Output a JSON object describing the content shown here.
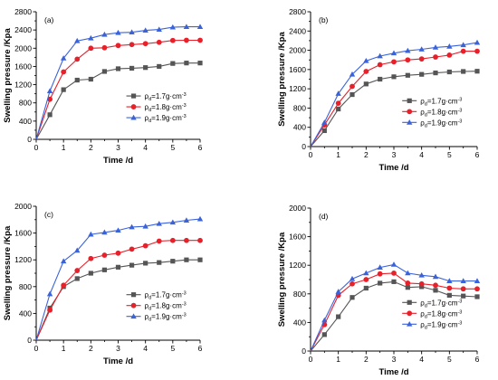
{
  "colors": {
    "series": [
      "#555555",
      "#e8202a",
      "#3b63d9"
    ],
    "axis": "#000000"
  },
  "chart_data": [
    {
      "type": "line",
      "panel_label": "(a)",
      "xlabel": "Time /d",
      "ylabel": "Swelling pressure /Kpa",
      "xlim": [
        0,
        6
      ],
      "ylim": [
        0,
        2800
      ],
      "xticks": [
        "0",
        "1",
        "2",
        "3",
        "4",
        "5",
        "6"
      ],
      "yticks": [
        "0",
        "400",
        "800",
        "1200",
        "1600",
        "2000",
        "2400",
        "2800"
      ],
      "grid": false,
      "legend_position": "lower-right",
      "x": [
        0,
        0.5,
        1,
        1.5,
        2,
        2.5,
        3,
        3.5,
        4,
        4.5,
        5,
        5.5,
        6
      ],
      "series": [
        {
          "legend": {
            "symbol": "ρ",
            "sub": "d",
            "text": "=1.7g·cm",
            "sup": "-3"
          },
          "marker": "square",
          "values": [
            0,
            540,
            1090,
            1300,
            1320,
            1490,
            1550,
            1560,
            1575,
            1600,
            1665,
            1675,
            1675
          ]
        },
        {
          "legend": {
            "symbol": "ρ",
            "sub": "d",
            "text": "=1.8g·cm",
            "sup": "-3"
          },
          "marker": "circle",
          "values": [
            0,
            880,
            1480,
            1760,
            2000,
            2010,
            2060,
            2080,
            2100,
            2130,
            2170,
            2175,
            2175
          ]
        },
        {
          "legend": {
            "symbol": "ρ",
            "sub": "d",
            "text": "=1.9g·cm",
            "sup": "-3"
          },
          "marker": "triangle",
          "values": [
            0,
            1060,
            1780,
            2160,
            2220,
            2300,
            2340,
            2350,
            2390,
            2410,
            2460,
            2470,
            2470
          ]
        }
      ]
    },
    {
      "type": "line",
      "panel_label": "(b)",
      "xlabel": "Time /d",
      "ylabel": "Swelling pressure /Kpa",
      "xlim": [
        0,
        6
      ],
      "ylim": [
        0,
        2800
      ],
      "xticks": [
        "0",
        "1",
        "2",
        "3",
        "4",
        "5",
        "6"
      ],
      "yticks": [
        "0",
        "400",
        "800",
        "1200",
        "1600",
        "2000",
        "2400",
        "2800"
      ],
      "grid": false,
      "legend_position": "lower-right",
      "x": [
        0,
        0.5,
        1,
        1.5,
        2,
        2.5,
        3,
        3.5,
        4,
        4.5,
        5,
        5.5,
        6
      ],
      "series": [
        {
          "legend": {
            "symbol": "ρ",
            "sub": "d",
            "text": "=1.7g·cm",
            "sup": "-3"
          },
          "marker": "square",
          "values": [
            0,
            330,
            780,
            1080,
            1300,
            1400,
            1450,
            1480,
            1500,
            1530,
            1550,
            1560,
            1565
          ]
        },
        {
          "legend": {
            "symbol": "ρ",
            "sub": "d",
            "text": "=1.8g·cm",
            "sup": "-3"
          },
          "marker": "circle",
          "values": [
            0,
            450,
            900,
            1250,
            1560,
            1700,
            1760,
            1800,
            1820,
            1860,
            1900,
            1980,
            1980
          ]
        },
        {
          "legend": {
            "symbol": "ρ",
            "sub": "d",
            "text": "=1.9g·cm",
            "sup": "-3"
          },
          "marker": "triangle",
          "values": [
            0,
            500,
            1100,
            1500,
            1780,
            1880,
            1940,
            1990,
            2020,
            2060,
            2080,
            2110,
            2160
          ]
        }
      ]
    },
    {
      "type": "line",
      "panel_label": "(c)",
      "xlabel": "Time /d",
      "ylabel": "Swelling pressure /Kpa",
      "xlim": [
        0,
        6
      ],
      "ylim": [
        0,
        2000
      ],
      "xticks": [
        "0",
        "1",
        "2",
        "3",
        "4",
        "5",
        "6"
      ],
      "yticks": [
        "0",
        "400",
        "800",
        "1200",
        "1600",
        "2000"
      ],
      "grid": false,
      "legend_position": "lower-right",
      "x": [
        0,
        0.5,
        1,
        1.5,
        2,
        2.5,
        3,
        3.5,
        4,
        4.5,
        5,
        5.5,
        6
      ],
      "series": [
        {
          "legend": {
            "symbol": "ρ",
            "sub": "d",
            "text": "=1.7g·cm",
            "sup": "-3"
          },
          "marker": "square",
          "values": [
            0,
            480,
            800,
            920,
            1000,
            1050,
            1090,
            1120,
            1150,
            1160,
            1180,
            1200,
            1200
          ]
        },
        {
          "legend": {
            "symbol": "ρ",
            "sub": "d",
            "text": "=1.8g·cm",
            "sup": "-3"
          },
          "marker": "circle",
          "values": [
            0,
            450,
            820,
            1040,
            1220,
            1270,
            1300,
            1360,
            1410,
            1480,
            1490,
            1490,
            1490
          ]
        },
        {
          "legend": {
            "symbol": "ρ",
            "sub": "d",
            "text": "=1.9g·cm",
            "sup": "-3"
          },
          "marker": "triangle",
          "values": [
            0,
            690,
            1180,
            1340,
            1580,
            1610,
            1640,
            1690,
            1700,
            1740,
            1760,
            1790,
            1810
          ]
        }
      ]
    },
    {
      "type": "line",
      "panel_label": "(d)",
      "xlabel": "Time /d",
      "ylabel": "Swelling pressure /Kpa",
      "xlim": [
        0,
        6
      ],
      "ylim": [
        0,
        2000
      ],
      "xticks": [
        "0",
        "1",
        "2",
        "3",
        "4",
        "5",
        "6"
      ],
      "yticks": [
        "0",
        "400",
        "800",
        "1200",
        "1600",
        "2000"
      ],
      "grid": false,
      "legend_position": "lower-right",
      "x": [
        0,
        0.5,
        1,
        1.5,
        2,
        2.5,
        3,
        3.5,
        4,
        4.5,
        5,
        5.5,
        6
      ],
      "series": [
        {
          "legend": {
            "symbol": "ρ",
            "sub": "d",
            "text": "=1.7g·cm",
            "sup": "-3"
          },
          "marker": "square",
          "values": [
            0,
            230,
            480,
            750,
            880,
            950,
            970,
            890,
            900,
            850,
            780,
            770,
            760
          ]
        },
        {
          "legend": {
            "symbol": "ρ",
            "sub": "d",
            "text": "=1.8g·cm",
            "sup": "-3"
          },
          "marker": "circle",
          "values": [
            0,
            370,
            780,
            940,
            1000,
            1080,
            1090,
            950,
            940,
            920,
            880,
            870,
            870
          ]
        },
        {
          "legend": {
            "symbol": "ρ",
            "sub": "d",
            "text": "=1.9g·cm",
            "sup": "-3"
          },
          "marker": "triangle",
          "values": [
            0,
            430,
            830,
            1010,
            1090,
            1170,
            1210,
            1090,
            1060,
            1040,
            980,
            980,
            980
          ]
        }
      ]
    }
  ]
}
